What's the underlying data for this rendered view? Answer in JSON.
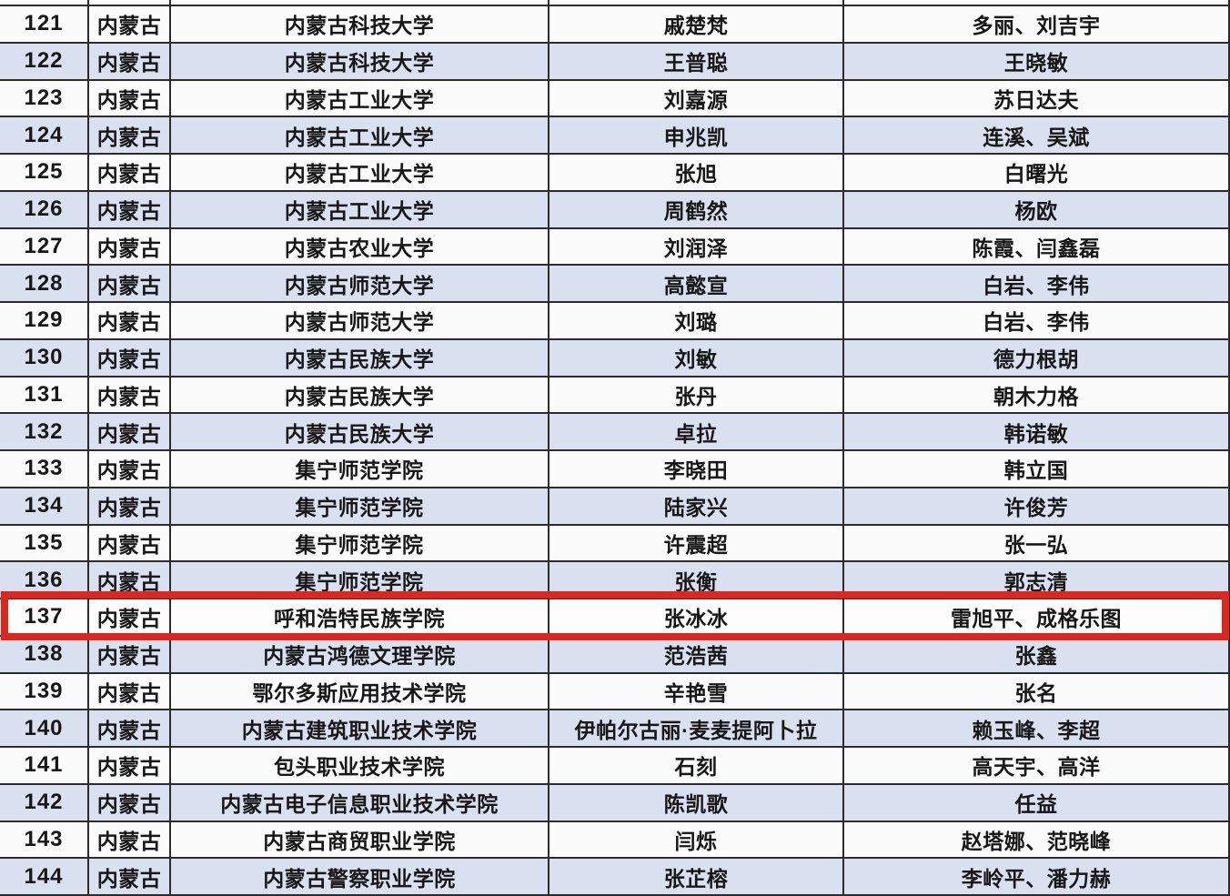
{
  "colors": {
    "highlight_border": "#e0261c",
    "row_alternate": "#d9e1f0",
    "row_base": "#fbfbfc",
    "grid_line": "#2c2c2c"
  },
  "table": {
    "highlighted_row_number": "137",
    "rows": [
      {
        "num": "121",
        "region": "内蒙古",
        "university": "内蒙古科技大学",
        "student": "戚楚梵",
        "advisors": "多丽、刘吉宇"
      },
      {
        "num": "122",
        "region": "内蒙古",
        "university": "内蒙古科技大学",
        "student": "王普聪",
        "advisors": "王晓敏"
      },
      {
        "num": "123",
        "region": "内蒙古",
        "university": "内蒙古工业大学",
        "student": "刘嘉源",
        "advisors": "苏日达夫"
      },
      {
        "num": "124",
        "region": "内蒙古",
        "university": "内蒙古工业大学",
        "student": "申兆凯",
        "advisors": "连溪、吴斌"
      },
      {
        "num": "125",
        "region": "内蒙古",
        "university": "内蒙古工业大学",
        "student": "张旭",
        "advisors": "白曙光"
      },
      {
        "num": "126",
        "region": "内蒙古",
        "university": "内蒙古工业大学",
        "student": "周鹤然",
        "advisors": "杨欧"
      },
      {
        "num": "127",
        "region": "内蒙古",
        "university": "内蒙古农业大学",
        "student": "刘润泽",
        "advisors": "陈霞、闫鑫磊"
      },
      {
        "num": "128",
        "region": "内蒙古",
        "university": "内蒙古师范大学",
        "student": "高懿宣",
        "advisors": "白岩、李伟"
      },
      {
        "num": "129",
        "region": "内蒙古",
        "university": "内蒙古师范大学",
        "student": "刘璐",
        "advisors": "白岩、李伟"
      },
      {
        "num": "130",
        "region": "内蒙古",
        "university": "内蒙古民族大学",
        "student": "刘敏",
        "advisors": "德力根胡"
      },
      {
        "num": "131",
        "region": "内蒙古",
        "university": "内蒙古民族大学",
        "student": "张丹",
        "advisors": "朝木力格"
      },
      {
        "num": "132",
        "region": "内蒙古",
        "university": "内蒙古民族大学",
        "student": "卓拉",
        "advisors": "韩诺敏"
      },
      {
        "num": "133",
        "region": "内蒙古",
        "university": "集宁师范学院",
        "student": "李晓田",
        "advisors": "韩立国"
      },
      {
        "num": "134",
        "region": "内蒙古",
        "university": "集宁师范学院",
        "student": "陆家兴",
        "advisors": "许俊芳"
      },
      {
        "num": "135",
        "region": "内蒙古",
        "university": "集宁师范学院",
        "student": "许震超",
        "advisors": "张一弘"
      },
      {
        "num": "136",
        "region": "内蒙古",
        "university": "集宁师范学院",
        "student": "张衡",
        "advisors": "郭志清"
      },
      {
        "num": "137",
        "region": "内蒙古",
        "university": "呼和浩特民族学院",
        "student": "张冰冰",
        "advisors": "雷旭平、成格乐图",
        "highlight": true
      },
      {
        "num": "138",
        "region": "内蒙古",
        "university": "内蒙古鸿德文理学院",
        "student": "范浩茜",
        "advisors": "张鑫"
      },
      {
        "num": "139",
        "region": "内蒙古",
        "university": "鄂尔多斯应用技术学院",
        "student": "辛艳雪",
        "advisors": "张名"
      },
      {
        "num": "140",
        "region": "内蒙古",
        "university": "内蒙古建筑职业技术学院",
        "student": "伊帕尔古丽·麦麦提阿卜拉",
        "advisors": "赖玉峰、李超"
      },
      {
        "num": "141",
        "region": "内蒙古",
        "university": "包头职业技术学院",
        "student": "石刻",
        "advisors": "高天宇、高洋"
      },
      {
        "num": "142",
        "region": "内蒙古",
        "university": "内蒙古电子信息职业技术学院",
        "student": "陈凯歌",
        "advisors": "任益"
      },
      {
        "num": "143",
        "region": "内蒙古",
        "university": "内蒙古商贸职业学院",
        "student": "闫烁",
        "advisors": "赵塔娜、范晓峰"
      },
      {
        "num": "144",
        "region": "内蒙古",
        "university": "内蒙古警察职业学院",
        "student": "张芷榕",
        "advisors": "李岭平、潘力赫"
      }
    ]
  }
}
